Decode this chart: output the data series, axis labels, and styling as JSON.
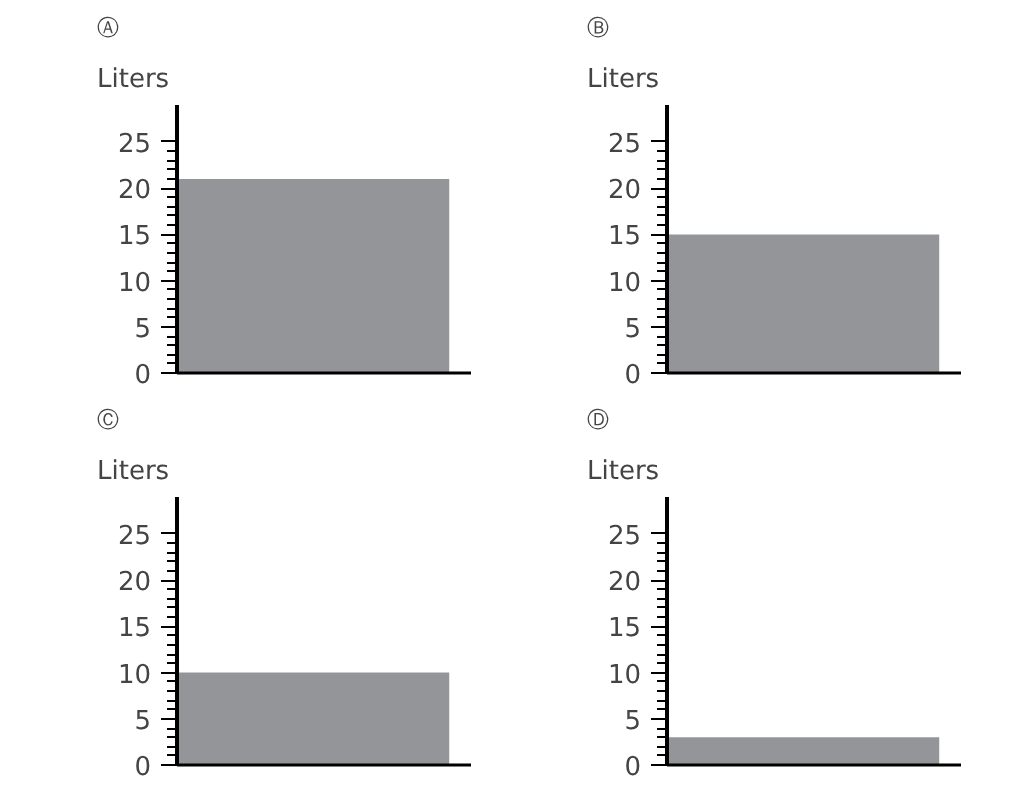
{
  "chart_data": [
    {
      "type": "bar",
      "title": "Ⓐ",
      "ylabel": "Liters",
      "categories": [
        null
      ],
      "values": [
        21
      ],
      "color": "#939598",
      "ylim": [
        0,
        29
      ],
      "yticks": [
        0,
        5,
        10,
        15,
        20,
        25
      ],
      "grid": false,
      "tick_labels": "y"
    },
    {
      "type": "bar",
      "title": "Ⓑ",
      "ylabel": "Liters",
      "categories": [
        null
      ],
      "values": [
        15
      ],
      "color": "#939598",
      "ylim": [
        0,
        29
      ],
      "yticks": [
        0,
        5,
        10,
        15,
        20,
        25
      ],
      "grid": false,
      "tick_labels": "y"
    },
    {
      "type": "bar",
      "title": "Ⓒ",
      "ylabel": "Liters",
      "categories": [
        null
      ],
      "values": [
        10
      ],
      "color": "#939598",
      "ylim": [
        0,
        29
      ],
      "yticks": [
        0,
        5,
        10,
        15,
        20,
        25
      ],
      "grid": false,
      "tick_labels": "y"
    },
    {
      "type": "bar",
      "title": "Ⓓ",
      "ylabel": "Liters",
      "categories": [
        null
      ],
      "values": [
        3
      ],
      "color": "#939598",
      "ylim": [
        0,
        29
      ],
      "yticks": [
        0,
        5,
        10,
        15,
        20,
        25
      ],
      "grid": false,
      "tick_labels": "y"
    }
  ]
}
